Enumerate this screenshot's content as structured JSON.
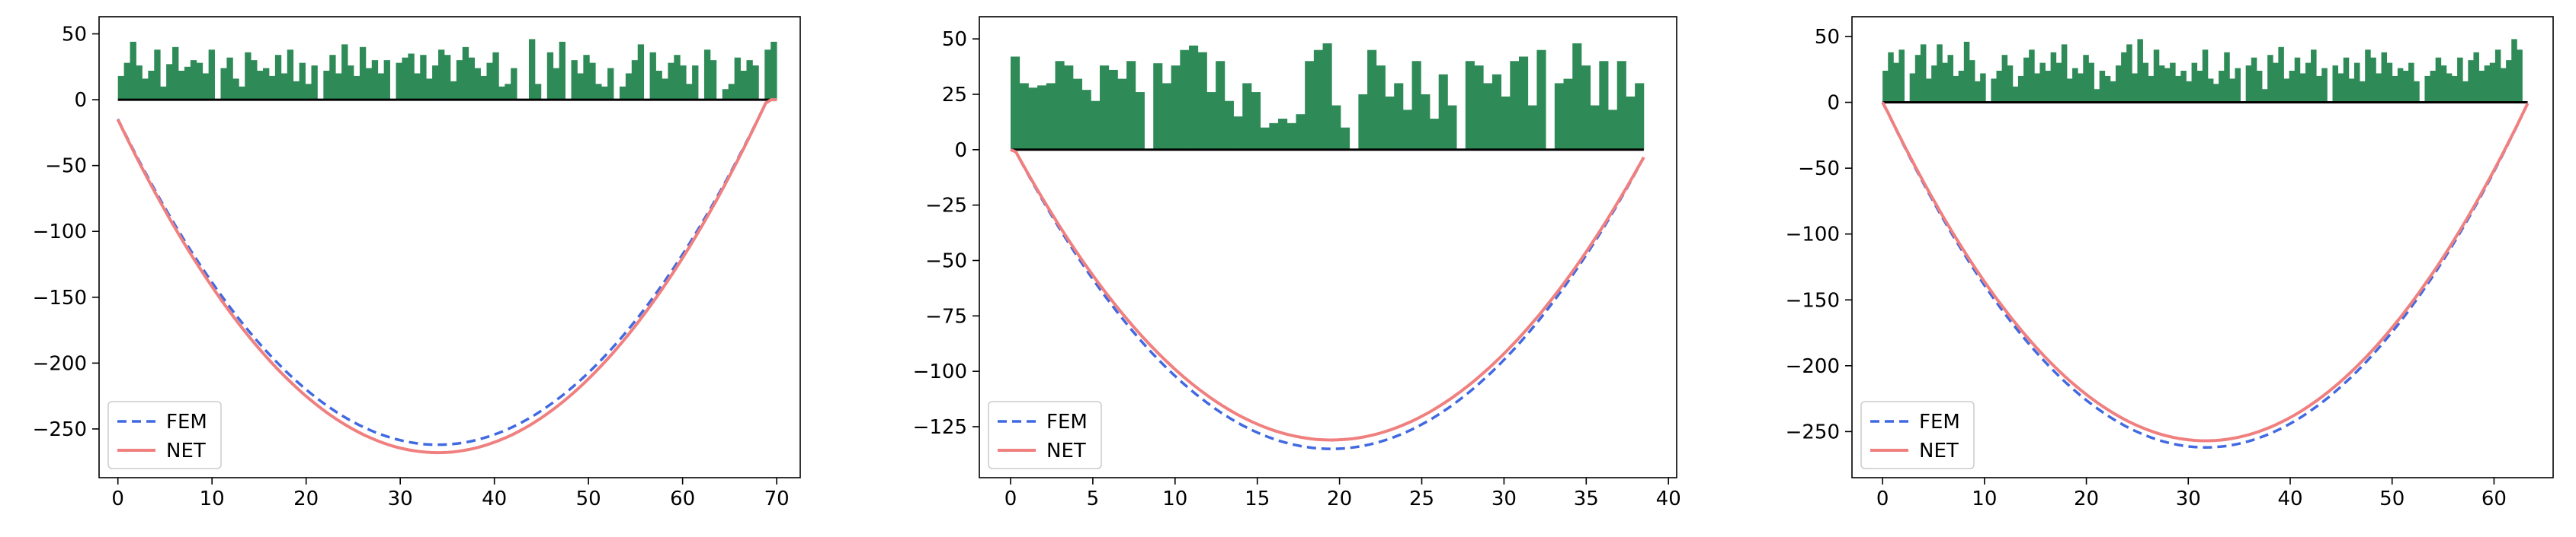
{
  "colors": {
    "fem": "#4169e1",
    "net": "#f08080",
    "bars": "#2e8b57",
    "zero_line": "#000000",
    "axes": "#000000"
  },
  "chart_data": [
    {
      "type": "line",
      "xlim": [
        -2,
        72.5
      ],
      "ylim": [
        -287,
        63
      ],
      "xticks": [
        0,
        10,
        20,
        30,
        40,
        50,
        60,
        70
      ],
      "yticks": [
        50,
        0,
        -50,
        -100,
        -150,
        -200,
        -250
      ],
      "ytick_labels": [
        "50",
        "0",
        "−50",
        "−100",
        "−150",
        "−200",
        "−250"
      ],
      "grid": false,
      "legend": "lower-left",
      "series": [
        {
          "name": "FEM",
          "style": "dashed",
          "x_start": 0,
          "x_end": 70,
          "min_x": 34,
          "min_y": -262
        },
        {
          "name": "NET",
          "style": "solid",
          "x_start": 0,
          "x_end": 70,
          "min_x": 34,
          "min_y": -268
        }
      ],
      "bars": {
        "x_start": 0,
        "x_end": 70,
        "values": [
          18,
          28,
          44,
          26,
          16,
          22,
          38,
          10,
          27,
          40,
          22,
          25,
          30,
          28,
          20,
          38,
          0,
          24,
          32,
          16,
          10,
          36,
          30,
          22,
          24,
          18,
          34,
          20,
          38,
          14,
          28,
          12,
          26,
          0,
          22,
          34,
          20,
          42,
          26,
          18,
          40,
          24,
          30,
          20,
          30,
          0,
          28,
          32,
          35,
          20,
          34,
          16,
          26,
          38,
          34,
          14,
          30,
          40,
          32,
          24,
          18,
          28,
          36,
          10,
          12,
          24,
          0,
          0,
          46,
          12,
          0,
          36,
          24,
          44,
          0,
          30,
          20,
          34,
          28,
          12,
          10,
          24,
          0,
          10,
          20,
          30,
          42,
          0,
          36,
          22,
          16,
          28,
          34,
          26,
          12,
          26,
          0,
          38,
          30,
          0,
          8,
          12,
          32,
          22,
          30,
          26,
          0,
          38,
          44
        ]
      }
    },
    {
      "type": "line",
      "xlim": [
        -1.9,
        40.5
      ],
      "ylim": [
        -148,
        60
      ],
      "xticks": [
        0,
        5,
        10,
        15,
        20,
        25,
        30,
        35,
        40
      ],
      "yticks": [
        50,
        25,
        0,
        -25,
        -50,
        -75,
        -100,
        -125
      ],
      "ytick_labels": [
        "50",
        "25",
        "0",
        "−25",
        "−50",
        "−75",
        "−100",
        "−125"
      ],
      "grid": false,
      "legend": "lower-left",
      "series": [
        {
          "name": "FEM",
          "style": "dashed",
          "x_start": 0,
          "x_end": 38.5,
          "min_x": 19.5,
          "min_y": -135
        },
        {
          "name": "NET",
          "style": "solid",
          "x_start": 0,
          "x_end": 38.5,
          "min_x": 19.5,
          "min_y": -131
        }
      ],
      "bars": {
        "x_start": 0,
        "x_end": 38.5,
        "values": [
          42,
          30,
          28,
          29,
          30,
          40,
          38,
          32,
          27,
          22,
          38,
          36,
          32,
          40,
          26,
          0,
          39,
          30,
          38,
          45,
          47,
          44,
          26,
          40,
          22,
          15,
          30,
          26,
          10,
          12,
          14,
          12,
          16,
          40,
          45,
          48,
          20,
          10,
          0,
          25,
          45,
          38,
          24,
          30,
          18,
          40,
          25,
          14,
          34,
          20,
          0,
          40,
          38,
          30,
          34,
          24,
          40,
          42,
          20,
          45,
          0,
          30,
          32,
          48,
          38,
          20,
          40,
          18,
          40,
          24,
          30
        ]
      }
    },
    {
      "type": "line",
      "xlim": [
        -3,
        65.8
      ],
      "ylim": [
        -285,
        65
      ],
      "xticks": [
        0,
        10,
        20,
        30,
        40,
        50,
        60
      ],
      "yticks": [
        50,
        0,
        -50,
        -100,
        -150,
        -200,
        -250
      ],
      "ytick_labels": [
        "50",
        "0",
        "−50",
        "−100",
        "−150",
        "−200",
        "−250"
      ],
      "grid": false,
      "legend": "lower-left",
      "series": [
        {
          "name": "FEM",
          "style": "dashed",
          "x_start": 0,
          "x_end": 63.3,
          "min_x": 31.7,
          "min_y": -262
        },
        {
          "name": "NET",
          "style": "solid",
          "x_start": 0,
          "x_end": 63.3,
          "min_x": 31.7,
          "min_y": -257
        }
      ],
      "bars": {
        "x_start": 0,
        "x_end": 63.3,
        "values": [
          24,
          38,
          30,
          40,
          0,
          22,
          36,
          44,
          18,
          28,
          44,
          30,
          36,
          20,
          24,
          46,
          32,
          16,
          22,
          0,
          18,
          24,
          36,
          28,
          12,
          20,
          34,
          40,
          22,
          30,
          24,
          38,
          30,
          44,
          18,
          26,
          22,
          36,
          30,
          10,
          24,
          20,
          16,
          28,
          38,
          44,
          22,
          48,
          30,
          20,
          40,
          28,
          26,
          30,
          20,
          24,
          16,
          30,
          24,
          40,
          18,
          14,
          24,
          38,
          18,
          26,
          0,
          28,
          34,
          24,
          10,
          36,
          30,
          42,
          18,
          24,
          34,
          22,
          30,
          40,
          20,
          26,
          0,
          28,
          22,
          34,
          18,
          30,
          16,
          40,
          34,
          22,
          38,
          30,
          20,
          26,
          24,
          30,
          16,
          0,
          20,
          24,
          34,
          28,
          22,
          20,
          34,
          16,
          32,
          38,
          24,
          28,
          30,
          40,
          26,
          32,
          48,
          40,
          0
        ]
      }
    }
  ]
}
